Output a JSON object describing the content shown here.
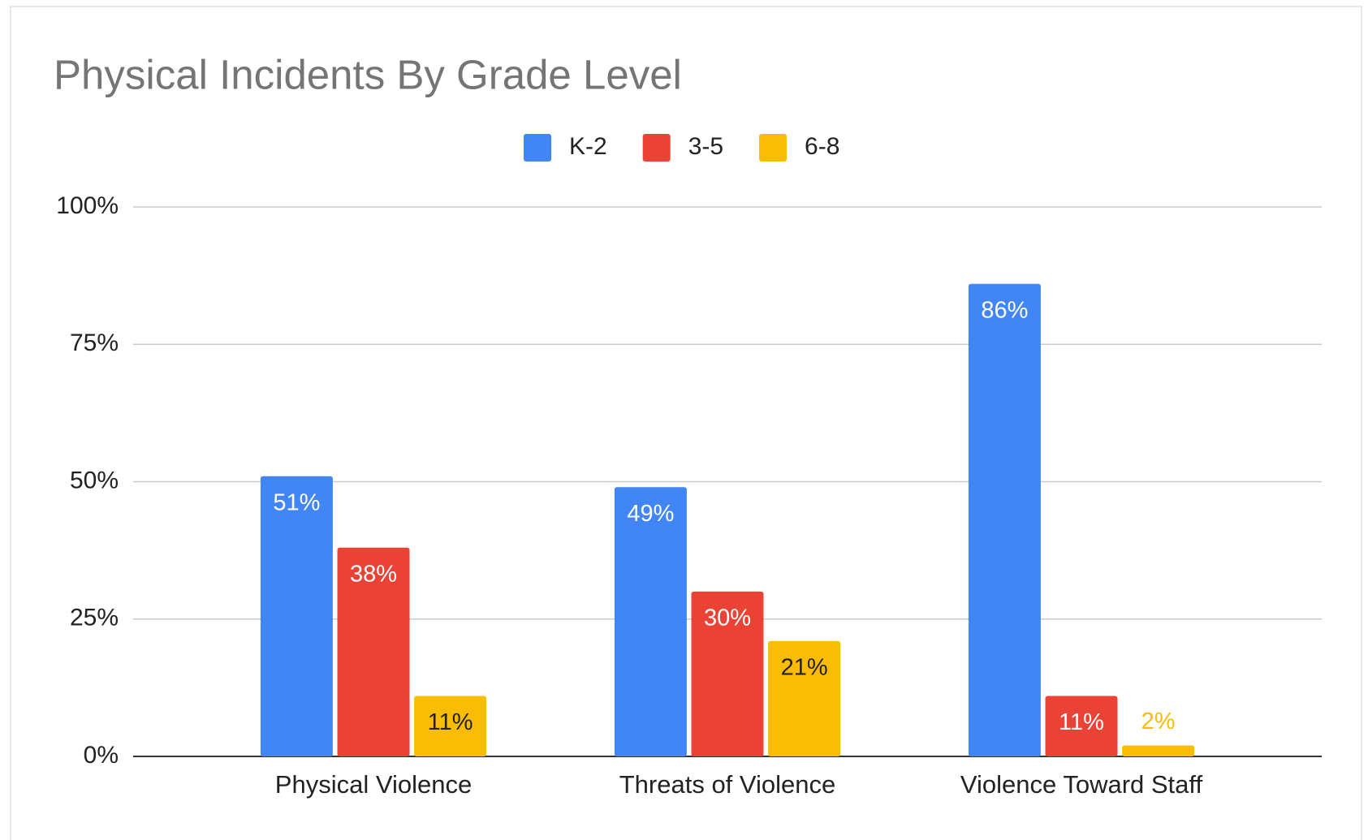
{
  "chart_data": {
    "type": "bar",
    "title": "Physical Incidents By Grade Level",
    "categories": [
      "Physical Violence",
      "Threats of Violence",
      "Violence Toward Staff"
    ],
    "series": [
      {
        "name": "K-2",
        "color": "#4285f4",
        "values": [
          51,
          49,
          86
        ],
        "value_labels": [
          "51%",
          "49%",
          "86%"
        ]
      },
      {
        "name": "3-5",
        "color": "#ea4335",
        "values": [
          38,
          30,
          11
        ],
        "value_labels": [
          "38%",
          "30%",
          "11%"
        ]
      },
      {
        "name": "6-8",
        "color": "#fbbc04",
        "values": [
          11,
          21,
          2
        ],
        "value_labels": [
          "11%",
          "21%",
          "2%"
        ]
      }
    ],
    "ylim": [
      0,
      100
    ],
    "yticks": [
      {
        "value": 0,
        "label": "0%"
      },
      {
        "value": 25,
        "label": "25%"
      },
      {
        "value": 50,
        "label": "50%"
      },
      {
        "value": 75,
        "label": "75%"
      },
      {
        "value": 100,
        "label": "100%"
      }
    ],
    "grid": true,
    "legend": "top"
  }
}
